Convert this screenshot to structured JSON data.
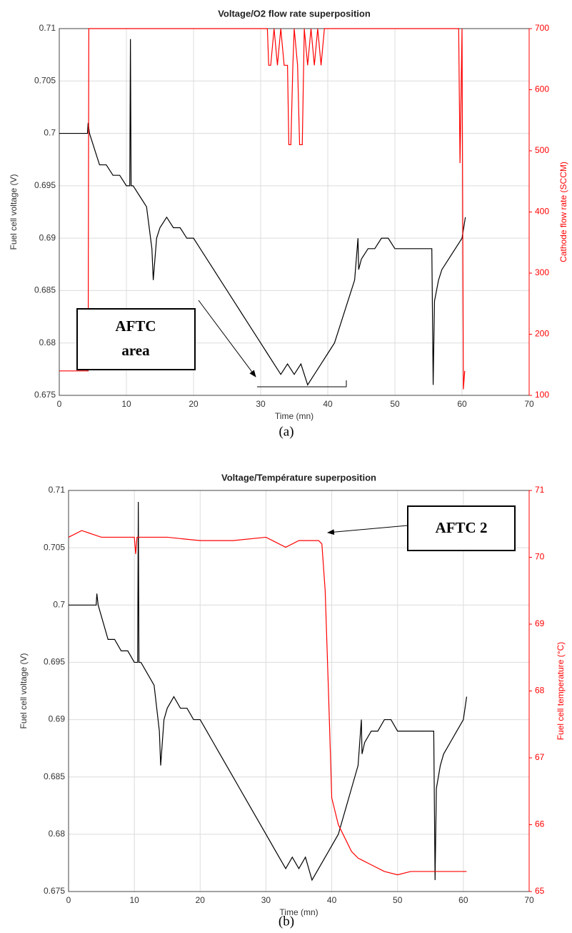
{
  "chart_data": [
    {
      "type": "line",
      "title": "Voltage/O2 flow rate superposition",
      "caption": "(a)",
      "xlabel": "Time (mn)",
      "ylabel": "Fuel cell voltage (V)",
      "y2label": "Cathode flow rate (SCCM)",
      "xlim": [
        0,
        70
      ],
      "xticks": [
        0,
        10,
        20,
        30,
        40,
        50,
        60,
        70
      ],
      "ylim": [
        0.675,
        0.71
      ],
      "yticks": [
        0.675,
        0.68,
        0.685,
        0.69,
        0.695,
        0.7,
        0.705,
        0.71
      ],
      "y2lim": [
        100,
        700
      ],
      "y2ticks": [
        100,
        200,
        300,
        400,
        500,
        600,
        700
      ],
      "grid": true,
      "annotation": [
        "AFTC",
        "area"
      ],
      "series": [
        {
          "name": "Fuel cell voltage",
          "color": "#000000",
          "x": [
            0,
            4.2,
            4.3,
            4.5,
            5,
            5.5,
            6,
            7,
            8,
            9,
            10,
            10.5,
            10.6,
            10.7,
            11,
            12,
            13,
            13.8,
            14,
            14.5,
            15,
            16,
            17,
            18,
            19,
            20,
            21,
            22,
            23,
            24,
            25,
            26,
            27,
            28,
            29,
            30,
            31,
            32,
            33,
            34,
            35,
            36,
            37,
            38,
            39,
            40,
            41,
            42,
            43,
            44,
            44.5,
            44.6,
            45,
            46,
            47,
            48,
            49,
            50,
            51,
            52,
            53,
            54,
            55,
            55.5,
            55.7,
            55.9,
            56.5,
            57,
            58,
            59,
            60,
            60.5
          ],
          "values": [
            0.7,
            0.7,
            0.701,
            0.7,
            0.699,
            0.698,
            0.697,
            0.697,
            0.696,
            0.696,
            0.695,
            0.695,
            0.709,
            0.695,
            0.695,
            0.694,
            0.693,
            0.689,
            0.686,
            0.69,
            0.691,
            0.692,
            0.691,
            0.691,
            0.69,
            0.69,
            0.689,
            0.688,
            0.687,
            0.686,
            0.685,
            0.684,
            0.683,
            0.682,
            0.681,
            0.68,
            0.679,
            0.678,
            0.677,
            0.678,
            0.677,
            0.678,
            0.676,
            0.677,
            0.678,
            0.679,
            0.68,
            0.682,
            0.684,
            0.686,
            0.69,
            0.687,
            0.688,
            0.689,
            0.689,
            0.69,
            0.69,
            0.689,
            0.689,
            0.689,
            0.689,
            0.689,
            0.689,
            0.689,
            0.676,
            0.684,
            0.686,
            0.687,
            0.688,
            0.689,
            0.69,
            0.692
          ]
        },
        {
          "name": "Cathode flow rate",
          "color": "#ff0000",
          "axis": "y2",
          "x": [
            0,
            4.3,
            4.4,
            31,
            31.2,
            31.5,
            32,
            32.5,
            33,
            33.5,
            34,
            34.2,
            34.5,
            34.8,
            35,
            35.5,
            35.8,
            36.2,
            36.5,
            37,
            37.5,
            38,
            38.5,
            39,
            39.5,
            40,
            59.5,
            59.7,
            60,
            60.2,
            60.4
          ],
          "values": [
            140,
            140,
            700,
            700,
            640,
            640,
            700,
            640,
            700,
            640,
            640,
            510,
            510,
            640,
            700,
            640,
            510,
            510,
            700,
            640,
            700,
            640,
            700,
            640,
            700,
            700,
            700,
            480,
            700,
            110,
            140
          ]
        }
      ]
    },
    {
      "type": "line",
      "title": "Voltage/Température superposition",
      "caption": "(b)",
      "xlabel": "Time (mn)",
      "ylabel": "Fuel cell voltage (V)",
      "y2label": "Fuel cell temperature (°C)",
      "xlim": [
        0,
        70
      ],
      "xticks": [
        0,
        10,
        20,
        30,
        40,
        50,
        60,
        70
      ],
      "ylim": [
        0.675,
        0.71
      ],
      "yticks": [
        0.675,
        0.68,
        0.685,
        0.69,
        0.695,
        0.7,
        0.705,
        0.71
      ],
      "y2lim": [
        65,
        71
      ],
      "y2ticks": [
        65,
        66,
        67,
        68,
        69,
        70,
        71
      ],
      "grid": true,
      "annotation": [
        "AFTC 2"
      ],
      "series": [
        {
          "name": "Fuel cell voltage",
          "color": "#000000",
          "x": [
            0,
            4.2,
            4.3,
            4.5,
            5,
            5.5,
            6,
            7,
            8,
            9,
            10,
            10.5,
            10.6,
            10.7,
            11,
            12,
            13,
            13.8,
            14,
            14.5,
            15,
            16,
            17,
            18,
            19,
            20,
            21,
            22,
            23,
            24,
            25,
            26,
            27,
            28,
            29,
            30,
            31,
            32,
            33,
            34,
            35,
            36,
            37,
            38,
            39,
            40,
            41,
            42,
            43,
            44,
            44.5,
            44.6,
            45,
            46,
            47,
            48,
            49,
            50,
            51,
            52,
            53,
            54,
            55,
            55.5,
            55.7,
            55.9,
            56.5,
            57,
            58,
            59,
            60,
            60.5
          ],
          "values": [
            0.7,
            0.7,
            0.701,
            0.7,
            0.699,
            0.698,
            0.697,
            0.697,
            0.696,
            0.696,
            0.695,
            0.695,
            0.709,
            0.695,
            0.695,
            0.694,
            0.693,
            0.689,
            0.686,
            0.69,
            0.691,
            0.692,
            0.691,
            0.691,
            0.69,
            0.69,
            0.689,
            0.688,
            0.687,
            0.686,
            0.685,
            0.684,
            0.683,
            0.682,
            0.681,
            0.68,
            0.679,
            0.678,
            0.677,
            0.678,
            0.677,
            0.678,
            0.676,
            0.677,
            0.678,
            0.679,
            0.68,
            0.682,
            0.684,
            0.686,
            0.69,
            0.687,
            0.688,
            0.689,
            0.689,
            0.69,
            0.69,
            0.689,
            0.689,
            0.689,
            0.689,
            0.689,
            0.689,
            0.689,
            0.676,
            0.684,
            0.686,
            0.687,
            0.688,
            0.689,
            0.69,
            0.692
          ]
        },
        {
          "name": "Fuel cell temperature",
          "color": "#ff0000",
          "axis": "y2",
          "x": [
            0,
            2,
            5,
            10,
            10.2,
            10.4,
            15,
            20,
            25,
            30,
            33,
            35,
            38,
            38.5,
            39,
            39.5,
            40,
            41,
            42,
            43,
            44,
            46,
            48,
            50,
            52,
            55,
            58,
            60.5
          ],
          "values": [
            70.3,
            70.4,
            70.3,
            70.3,
            70.05,
            70.3,
            70.3,
            70.25,
            70.25,
            70.3,
            70.15,
            70.25,
            70.25,
            70.2,
            69.5,
            68,
            66.4,
            66,
            65.8,
            65.6,
            65.5,
            65.4,
            65.3,
            65.25,
            65.3,
            65.3,
            65.3,
            65.3
          ]
        }
      ]
    }
  ]
}
